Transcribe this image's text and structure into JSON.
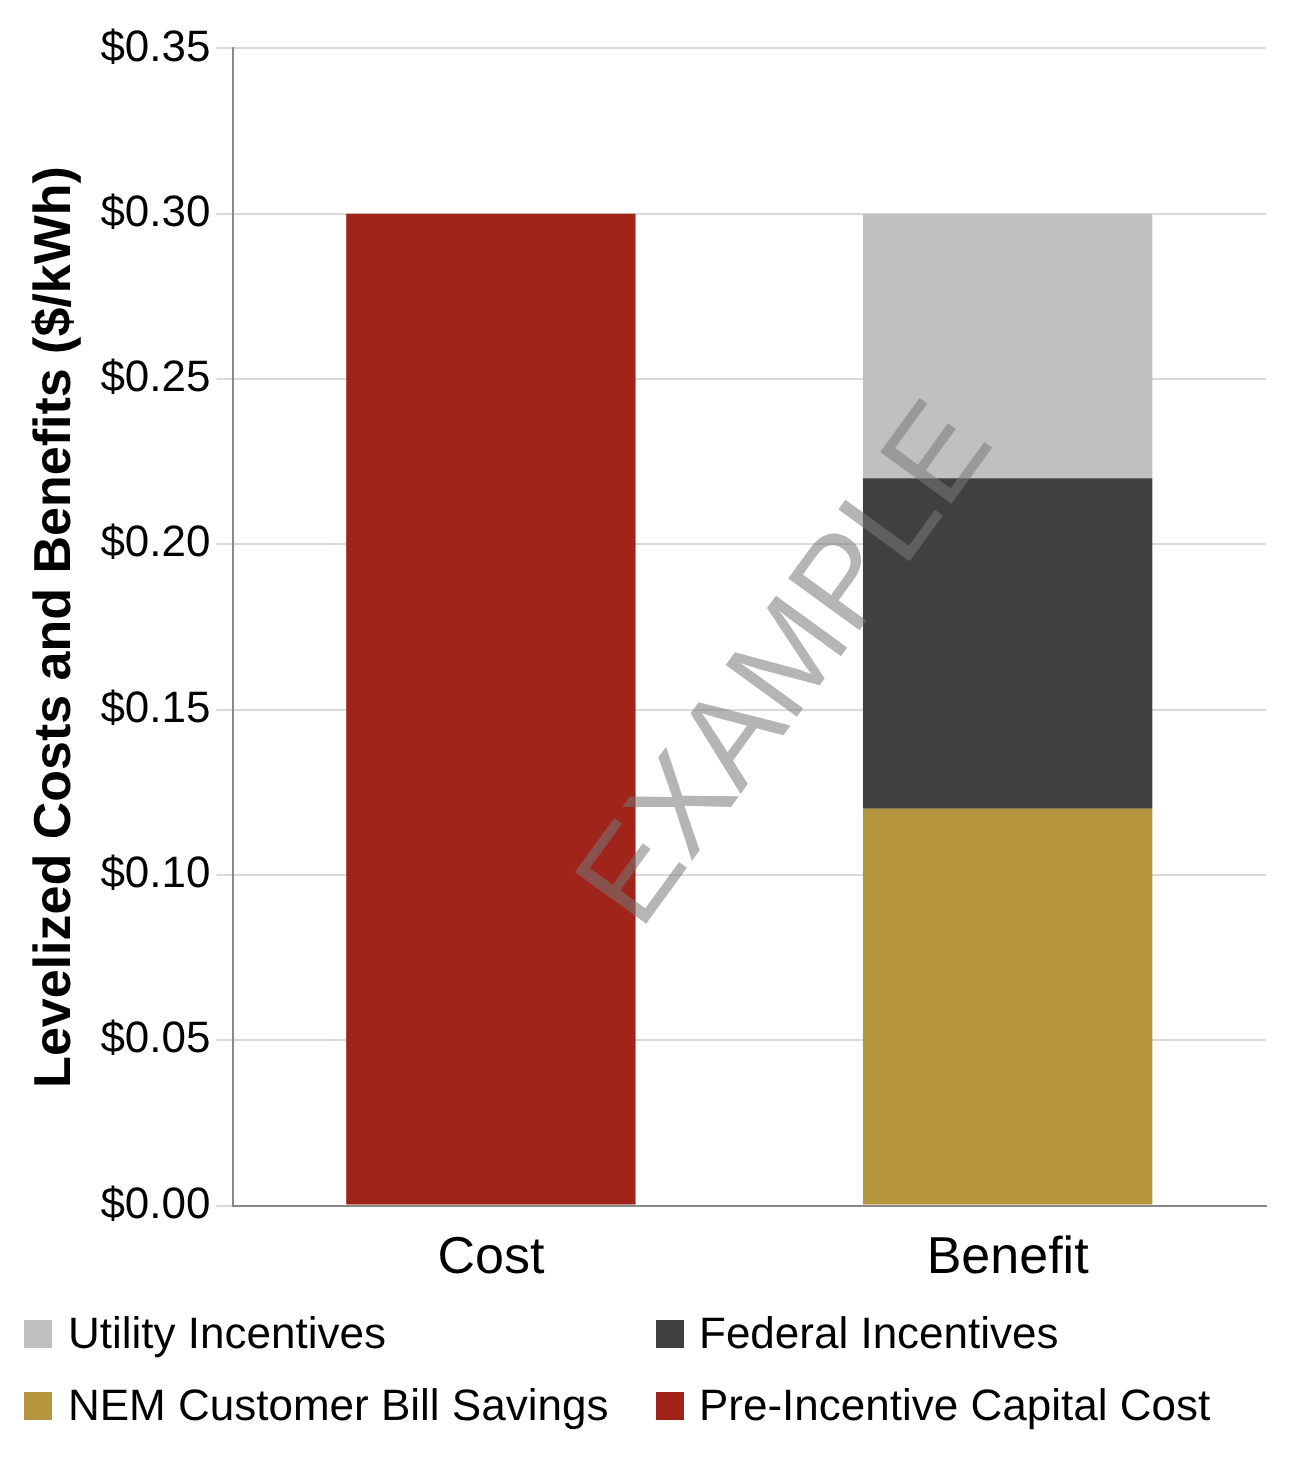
{
  "chart_data": {
    "type": "bar",
    "stacked": true,
    "ylabel": "Levelized Costs and Benefits ($/kWh)",
    "categories": [
      "Cost",
      "Benefit"
    ],
    "series": [
      {
        "name": "Pre-Incentive Capital Cost",
        "color": "#a0241a",
        "values": [
          0.3,
          null
        ]
      },
      {
        "name": "NEM Customer Bill Savings",
        "color": "#b5963c",
        "values": [
          null,
          0.12
        ]
      },
      {
        "name": "Federal Incentives",
        "color": "#404040",
        "values": [
          null,
          0.1
        ]
      },
      {
        "name": "Utility Incentives",
        "color": "#c0c0c0",
        "values": [
          null,
          0.08
        ]
      }
    ],
    "ylim": [
      0,
      0.35
    ],
    "yticks": [
      {
        "value": 0,
        "label": "$0.00"
      },
      {
        "value": 0.05,
        "label": "$0.05"
      },
      {
        "value": 0.1,
        "label": "$0.10"
      },
      {
        "value": 0.15,
        "label": "$0.15"
      },
      {
        "value": 0.2,
        "label": "$0.20"
      },
      {
        "value": 0.25,
        "label": "$0.25"
      },
      {
        "value": 0.3,
        "label": "$0.30"
      },
      {
        "value": 0.35,
        "label": "$0.35"
      }
    ],
    "grid": "y",
    "legend": "bottom",
    "annotations": [
      "EXAMPLE"
    ]
  }
}
